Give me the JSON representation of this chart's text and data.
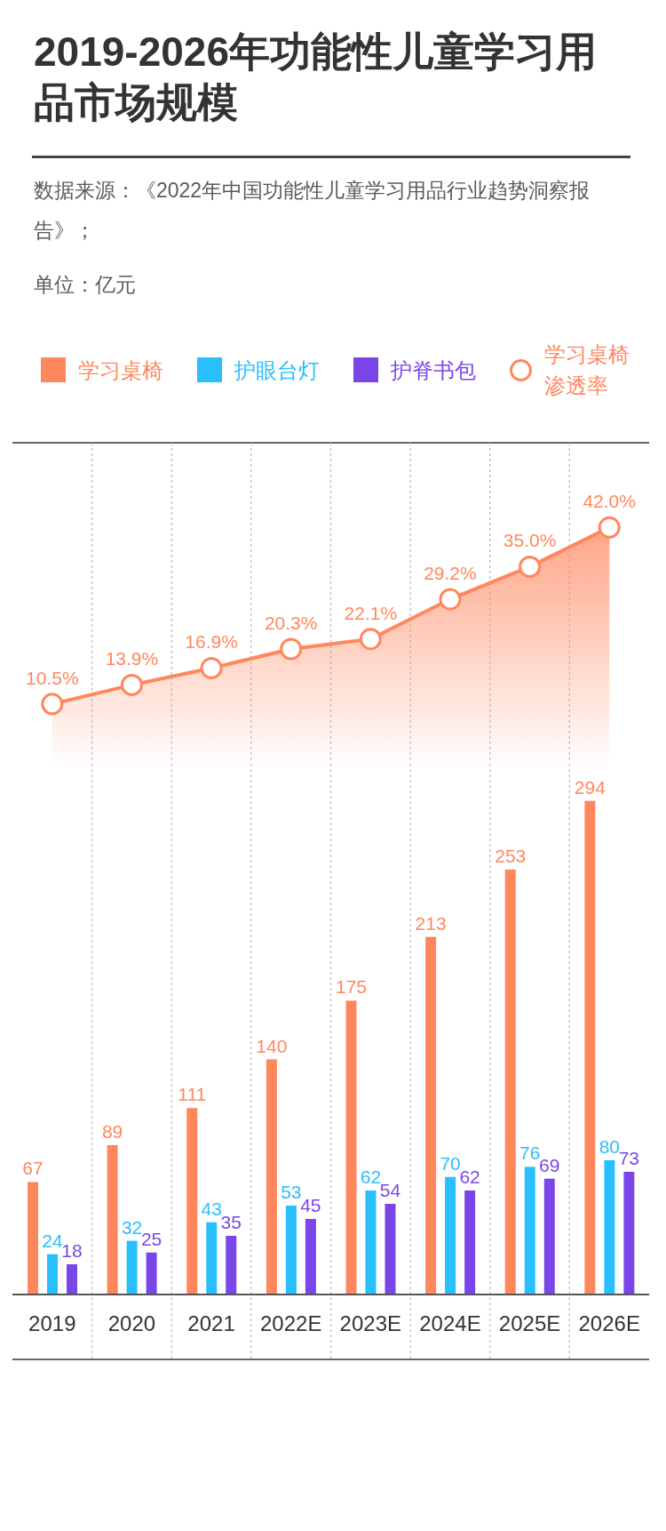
{
  "chart_data": [
    {
      "type": "area",
      "title": "2019-2026年功能性儿童学习用品市场规模",
      "annotations": [
        "数据来源：《2022年中国功能性儿童学习用品行业趋势洞察报告》；",
        "单位：亿元"
      ],
      "categories": [
        null,
        null,
        null,
        null,
        null,
        null,
        null,
        null
      ],
      "series": [
        {
          "name": "学习桌椅渗透率",
          "color": "#ff875e",
          "values": [
            10.5,
            13.9,
            16.9,
            20.3,
            22.1,
            29.2,
            35.0,
            42.0
          ],
          "value_labels": [
            "10.5%",
            "13.9%",
            "16.9%",
            "20.3%",
            "22.1%",
            "29.2%",
            "35.0%",
            "42.0%"
          ]
        }
      ],
      "marker": "circle",
      "line_style": "solid",
      "grid": "x",
      "legend": "top"
    },
    {
      "type": "bar",
      "categories": [
        "2019",
        "2020",
        "2021",
        "2022E",
        "2023E",
        "2024E",
        "2025E",
        "2026E"
      ],
      "series": [
        {
          "name": "学习桌椅",
          "color": "#ff875e",
          "values": [
            67,
            89,
            111,
            140,
            175,
            213,
            253,
            294
          ]
        },
        {
          "name": "护眼台灯",
          "color": "#29bffd",
          "values": [
            24,
            32,
            43,
            53,
            62,
            70,
            76,
            80
          ]
        },
        {
          "name": "护脊书包",
          "color": "#7a46e9",
          "values": [
            18,
            25,
            35,
            45,
            54,
            62,
            69,
            73
          ]
        }
      ],
      "data_labels": true,
      "grid": "x",
      "legend": "top",
      "tick_labels": "x"
    }
  ]
}
